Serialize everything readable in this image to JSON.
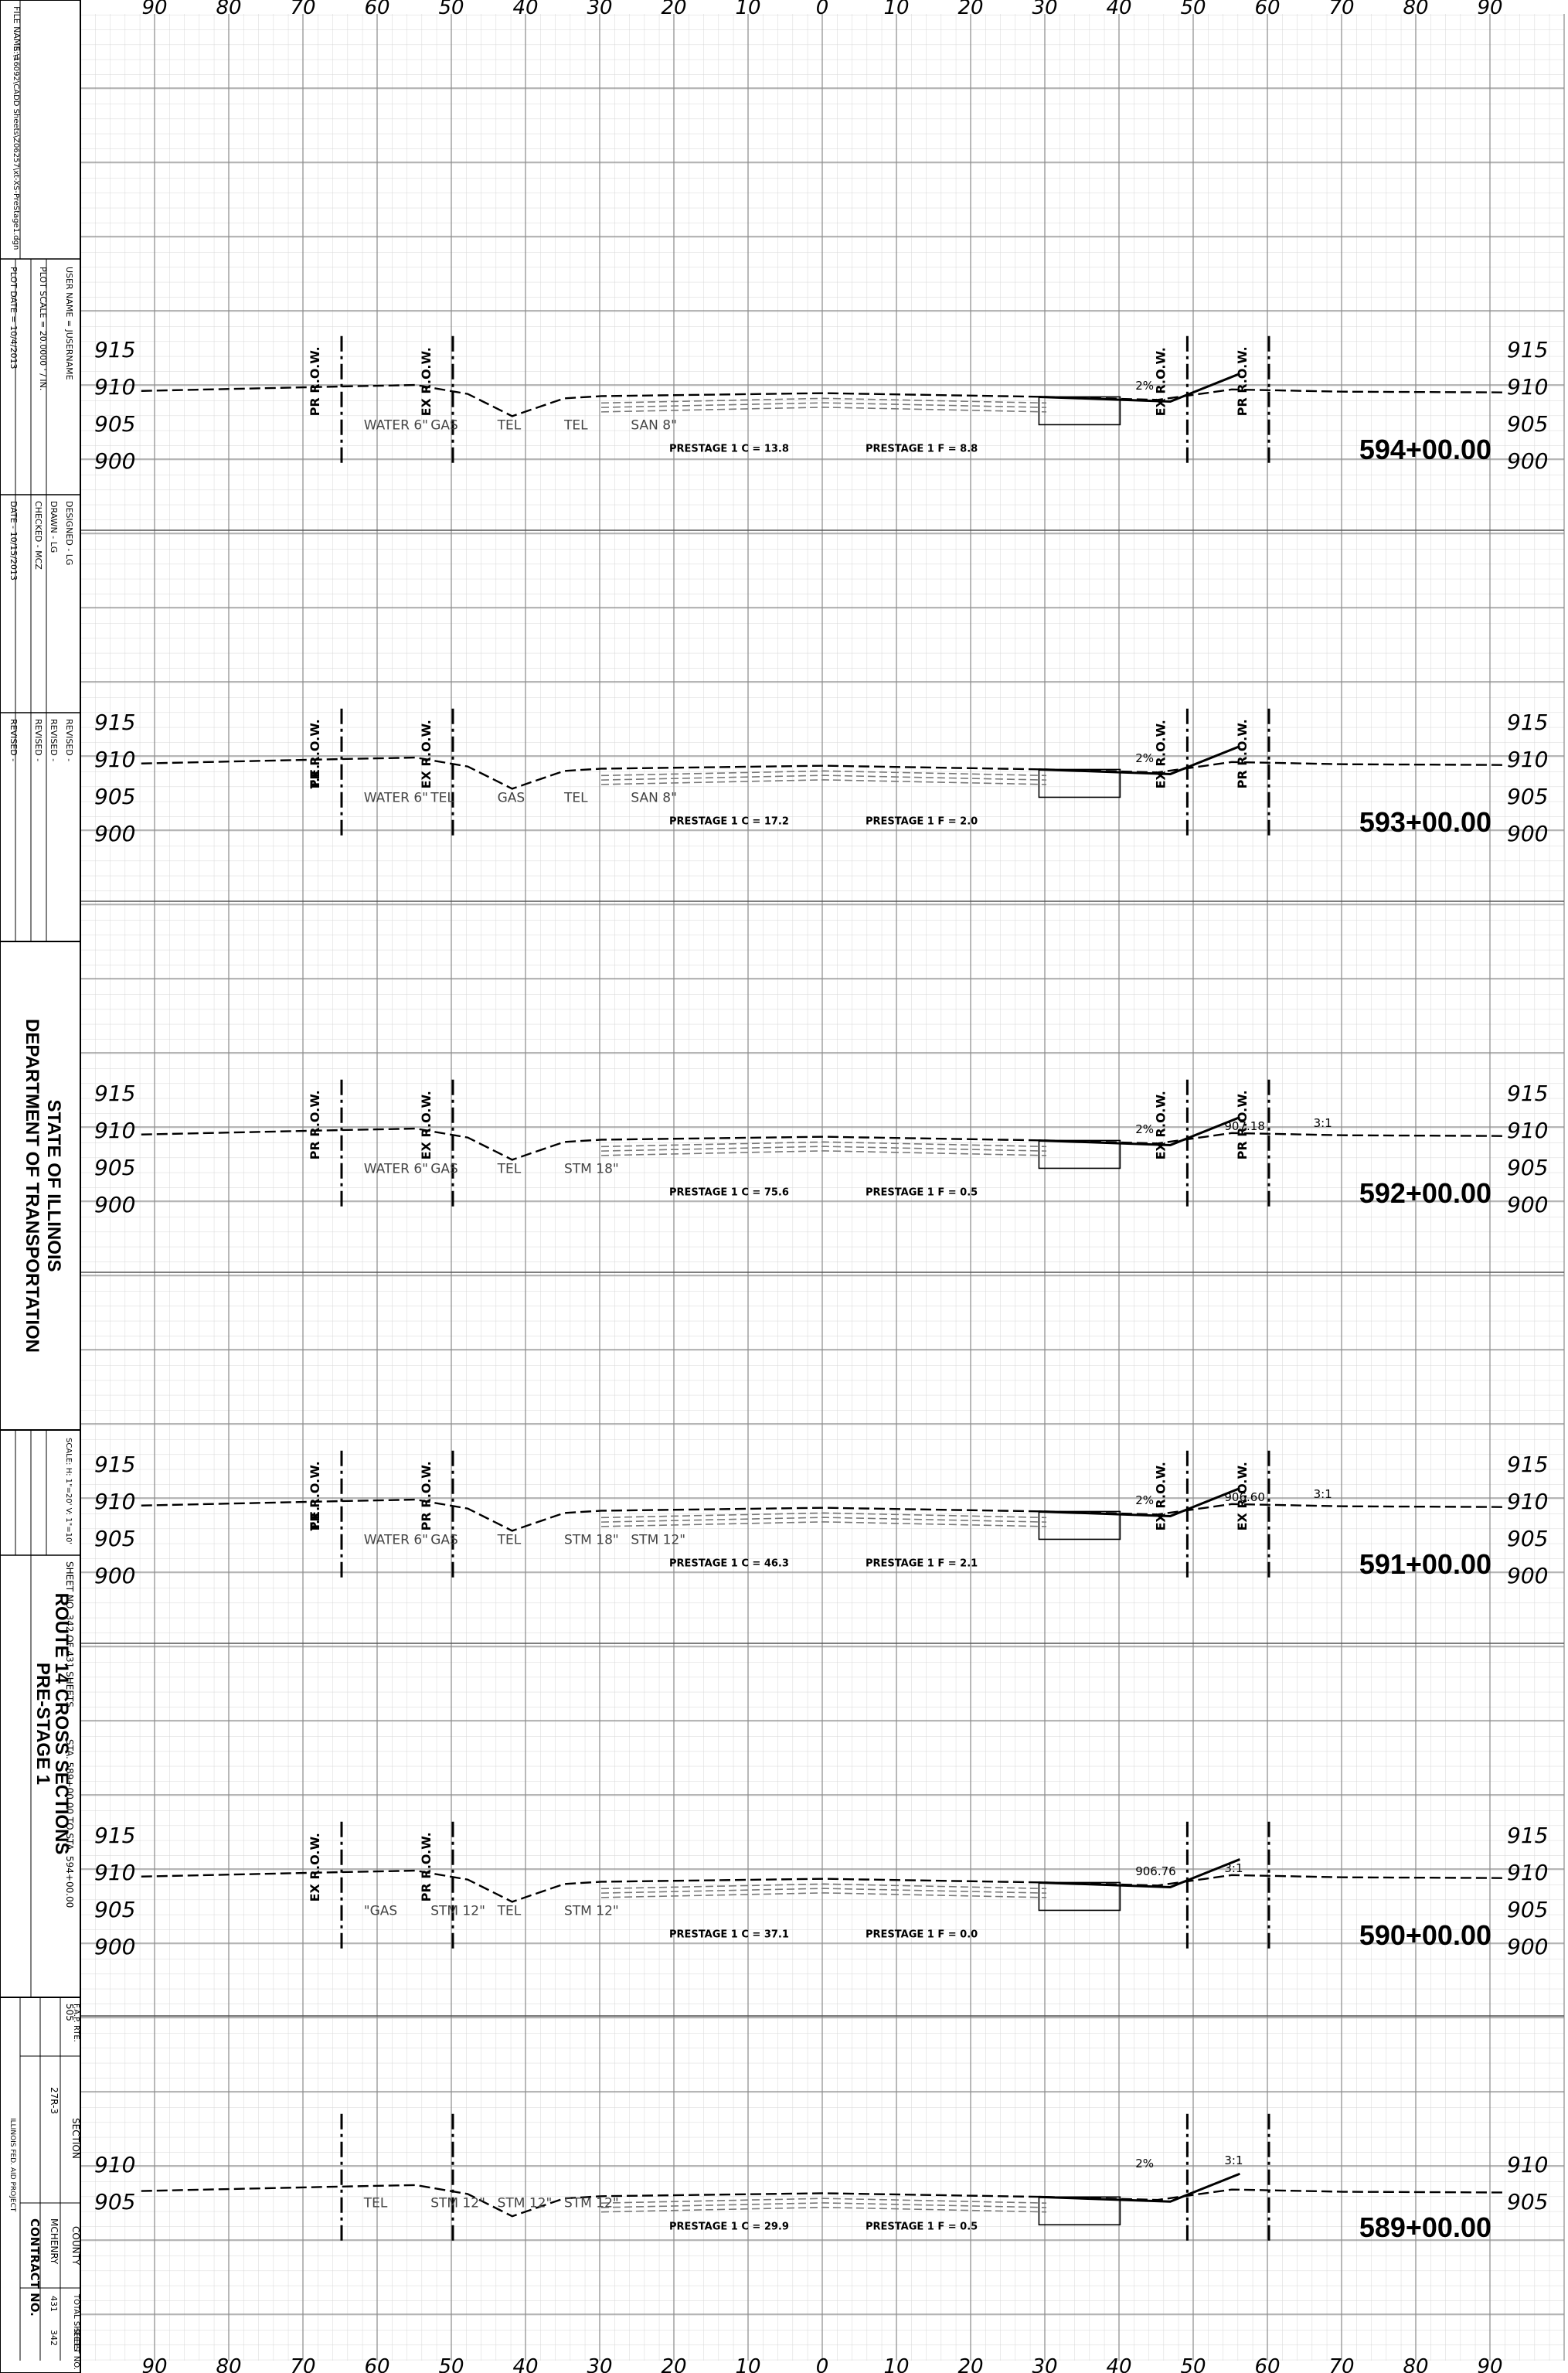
{
  "title_block": {
    "file_name": "FILE NAME =",
    "file_path": "S:\\16092\\CADD Sheets\\Z06257\\xt-XS-PreStage1.dgn",
    "user_name": "USER NAME = JUSERNAME",
    "plot_scale": "PLOT SCALE = 20.0000 ' / IN.",
    "plot_date": "PLOT DATE = 10/4/2013",
    "designed": "DESIGNED - LG",
    "drawn": "DRAWN - LG",
    "checked": "CHECKED - MCZ",
    "date": "DATE - 10/15/2013",
    "revised": [
      "REVISED -",
      "REVISED -",
      "REVISED -",
      "REVISED -"
    ],
    "agency_line1": "STATE OF ILLINOIS",
    "agency_line2": "DEPARTMENT OF TRANSPORTATION",
    "scale": "SCALE: H: 1\"=20' V: 1\"=10'",
    "sheet_no": "SHEET NO. 342 OF 431 SHEETS",
    "sta_range": "STA. 589+00.00 TO STA. 594+00.00",
    "sheet_title_line1": "ROUTE 14 CROSS SECTIONS",
    "sheet_title_line2": "PRE-STAGE 1",
    "fap_rte_label": "F.A.P. RTE.",
    "fap_rte": "505",
    "section_label": "SECTION",
    "section": "27R-3",
    "county_label": "COUNTY",
    "county": "MCHENRY",
    "total_sheets_label": "TOTAL SHEETS",
    "total_sheets": "431",
    "sheet_no_label": "SHEET NO.",
    "sheet_number": "342",
    "contract": "CONTRACT NO.",
    "aid_project": "ILLINOIS FED. AID PROJECT"
  },
  "offset_scale": [
    "90",
    "80",
    "70",
    "60",
    "50",
    "40",
    "30",
    "20",
    "10",
    "0",
    "10",
    "20",
    "30",
    "40",
    "50",
    "60",
    "70",
    "80",
    "90"
  ],
  "sections": [
    {
      "station": "594+00.00",
      "elev_labels": [
        "915",
        "910",
        "905",
        "900"
      ],
      "prestage_c": "PRESTAGE 1 C = 13.8",
      "prestage_f": "PRESTAGE 1 F = 8.8",
      "row_labels": [
        "PR R.O.W.",
        "EX R.O.W.",
        "EX R.O.W.",
        "PR R.O.W."
      ],
      "utility_labels": [
        "WATER 6\"",
        "GAS",
        "TEL",
        "TEL",
        "SAN 8\""
      ],
      "slope_labels": [
        "2%"
      ]
    },
    {
      "station": "593+00.00",
      "elev_labels": [
        "915",
        "910",
        "905",
        "900"
      ],
      "prestage_c": "PRESTAGE 1 C = 17.2",
      "prestage_f": "PRESTAGE 1 F = 2.0",
      "row_labels": [
        "PR R.O.W.",
        "EX R.O.W.",
        "EX R.O.W.",
        "PR R.O.W.",
        "T.E."
      ],
      "utility_labels": [
        "WATER 6\"",
        "TEL",
        "GAS",
        "TEL",
        "SAN 8\""
      ],
      "slope_labels": [
        "2%"
      ]
    },
    {
      "station": "592+00.00",
      "elev_labels": [
        "915",
        "910",
        "905",
        "900"
      ],
      "prestage_c": "PRESTAGE 1 C = 75.6",
      "prestage_f": "PRESTAGE 1 F = 0.5",
      "row_labels": [
        "PR R.O.W.",
        "EX R.O.W.",
        "EX R.O.W.",
        "PR R.O.W."
      ],
      "utility_labels": [
        "WATER 6\"",
        "GAS",
        "TEL",
        "STM 18\""
      ],
      "slope_labels": [
        "2%",
        "907.18",
        "3:1"
      ]
    },
    {
      "station": "591+00.00",
      "elev_labels": [
        "915",
        "910",
        "905",
        "900"
      ],
      "prestage_c": "PRESTAGE 1 C = 46.3",
      "prestage_f": "PRESTAGE 1 F = 2.1",
      "row_labels": [
        "T.E.",
        "PR R.O.W.",
        "EX R.O.W.",
        "EX R.O.W.",
        "PR R.O.W."
      ],
      "utility_labels": [
        "WATER 6\"",
        "GAS",
        "TEL",
        "STM 18\"",
        "STM 12\""
      ],
      "slope_labels": [
        "2%",
        "906.60",
        "3:1"
      ]
    },
    {
      "station": "590+00.00",
      "elev_labels": [
        "915",
        "910",
        "905",
        "900"
      ],
      "prestage_c": "PRESTAGE 1 C = 37.1",
      "prestage_f": "PRESTAGE 1 F = 0.0",
      "row_labels": [
        "EX R.O.W.",
        "PR R.O.W."
      ],
      "utility_labels": [
        "\"GAS",
        "STM 12\"",
        "TEL",
        "STM 12\""
      ],
      "slope_labels": [
        "906.76",
        "3:1"
      ]
    },
    {
      "station": "589+00.00",
      "elev_labels": [
        "910",
        "905"
      ],
      "prestage_c": "PRESTAGE 1 C = 29.9",
      "prestage_f": "PRESTAGE 1 F = 0.5",
      "row_labels": [],
      "utility_labels": [
        "TEL",
        "STM 12\"",
        "STM 12\"",
        "STM 12\""
      ],
      "slope_labels": [
        "2%",
        "3:1"
      ]
    }
  ],
  "colors": {
    "grid_minor": "#d4d4d4",
    "grid_major": "#8a8a8a",
    "ink": "#000000",
    "existing": "#555555"
  }
}
